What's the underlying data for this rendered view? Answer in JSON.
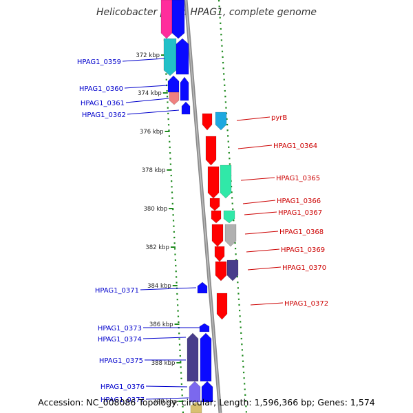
{
  "title": "Helicobacter pylori HPAG1, complete genome",
  "footer": {
    "accession": "Accession: NC_008086",
    "topology": "Topology: circular;",
    "length": "Length: 1,596,366 bp;",
    "genes": "Genes: 1,574"
  },
  "colors": {
    "left_label": "#0000cc",
    "right_label": "#cc0000",
    "ruler_tick": "#1e8a1e",
    "backbone": "#8c8c8c"
  },
  "ruler_labels": [
    "372 kbp",
    "374 kbp",
    "376 kbp",
    "378 kbp",
    "380 kbp",
    "382 kbp",
    "384 kbp",
    "386 kbp",
    "388 kbp",
    "390 kbp"
  ],
  "left_genes": [
    "HPAG1_0359",
    "HPAG1_0360",
    "HPAG1_0361",
    "HPAG1_0362",
    "HPAG1_0371",
    "HPAG1_0373",
    "HPAG1_0374",
    "HPAG1_0375",
    "HPAG1_0376",
    "HPAG1_0377"
  ],
  "right_genes": [
    "pyrB",
    "HPAG1_0364",
    "HPAG1_0365",
    "HPAG1_0366",
    "HPAG1_0367",
    "HPAG1_0368",
    "HPAG1_0369",
    "HPAG1_0370",
    "HPAG1_0372"
  ],
  "icons": {
    "forward_gene": "arrow-up-icon",
    "reverse_gene": "arrow-down-icon"
  }
}
